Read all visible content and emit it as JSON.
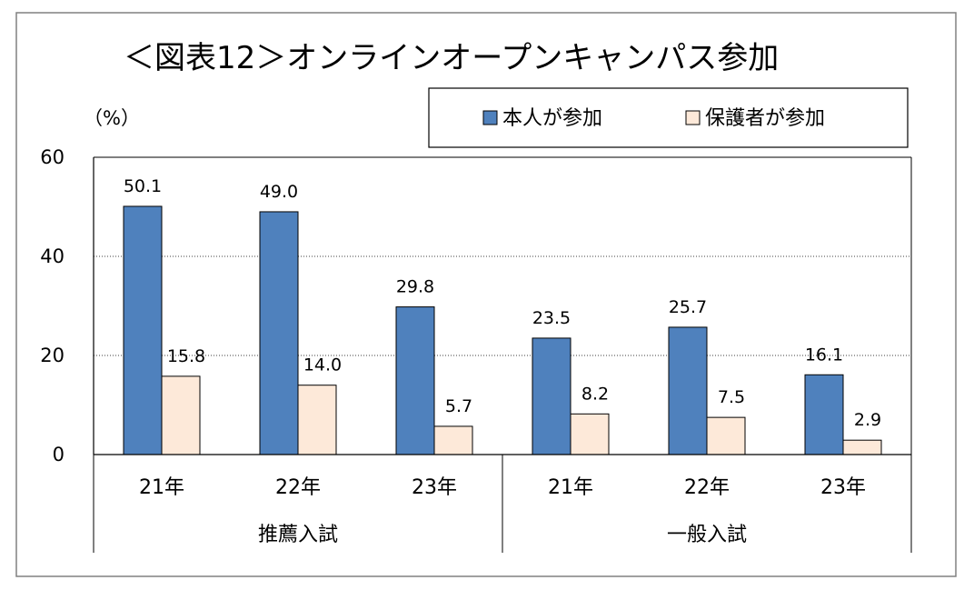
{
  "chart_data": {
    "type": "bar",
    "title": "＜図表12＞オンラインオープンキャンパス参加",
    "unit_label": "（%）",
    "ylim": [
      0,
      60
    ],
    "yticks": [
      "0",
      "20",
      "40",
      "60"
    ],
    "grid": true,
    "legend_position": "top-right",
    "categories": [
      "21年",
      "22年",
      "23年",
      "21年",
      "22年",
      "23年"
    ],
    "groups": [
      {
        "label": "推薦入試",
        "categories": [
          "21年",
          "22年",
          "23年"
        ]
      },
      {
        "label": "一般入試",
        "categories": [
          "21年",
          "22年",
          "23年"
        ]
      }
    ],
    "series": [
      {
        "name": "本人が参加",
        "color": "#4f81bd",
        "values": [
          50.1,
          49.0,
          29.8,
          23.5,
          25.7,
          16.1
        ],
        "labels": [
          "50.1",
          "49.0",
          "29.8",
          "23.5",
          "25.7",
          "16.1"
        ]
      },
      {
        "name": "保護者が参加",
        "color": "#fde9d9",
        "values": [
          15.8,
          14.0,
          5.7,
          8.2,
          7.5,
          2.9
        ],
        "labels": [
          "15.8",
          "14.0",
          "5.7",
          "8.2",
          "7.5",
          "2.9"
        ]
      }
    ]
  }
}
